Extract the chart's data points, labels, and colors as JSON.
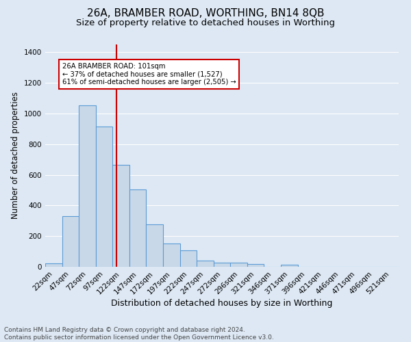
{
  "title1": "26A, BRAMBER ROAD, WORTHING, BN14 8QB",
  "title2": "Size of property relative to detached houses in Worthing",
  "xlabel": "Distribution of detached houses by size in Worthing",
  "ylabel": "Number of detached properties",
  "categories": [
    "22sqm",
    "47sqm",
    "72sqm",
    "97sqm",
    "122sqm",
    "147sqm",
    "172sqm",
    "197sqm",
    "222sqm",
    "247sqm",
    "272sqm",
    "296sqm",
    "321sqm",
    "346sqm",
    "371sqm",
    "396sqm",
    "421sqm",
    "446sqm",
    "471sqm",
    "496sqm",
    "521sqm"
  ],
  "values": [
    22,
    330,
    1052,
    915,
    667,
    502,
    278,
    152,
    105,
    38,
    25,
    25,
    18,
    0,
    12,
    0,
    0,
    0,
    0,
    0,
    0
  ],
  "bar_color": "#c8d8e8",
  "bar_edge_color": "#5b9bd5",
  "vline_x": 3.75,
  "vline_color": "#cc0000",
  "annotation_text": "26A BRAMBER ROAD: 101sqm\n← 37% of detached houses are smaller (1,527)\n61% of semi-detached houses are larger (2,505) →",
  "annotation_box_color": "#ffffff",
  "annotation_box_edge": "#cc0000",
  "ylim": [
    0,
    1450
  ],
  "yticks": [
    0,
    200,
    400,
    600,
    800,
    1000,
    1200,
    1400
  ],
  "footnote": "Contains HM Land Registry data © Crown copyright and database right 2024.\nContains public sector information licensed under the Open Government Licence v3.0.",
  "bg_color": "#dde8f4",
  "plot_bg_color": "#dde8f4",
  "grid_color": "#ffffff",
  "title1_fontsize": 11,
  "title2_fontsize": 9.5,
  "xlabel_fontsize": 9,
  "ylabel_fontsize": 8.5,
  "tick_fontsize": 7.5,
  "footnote_fontsize": 6.5
}
